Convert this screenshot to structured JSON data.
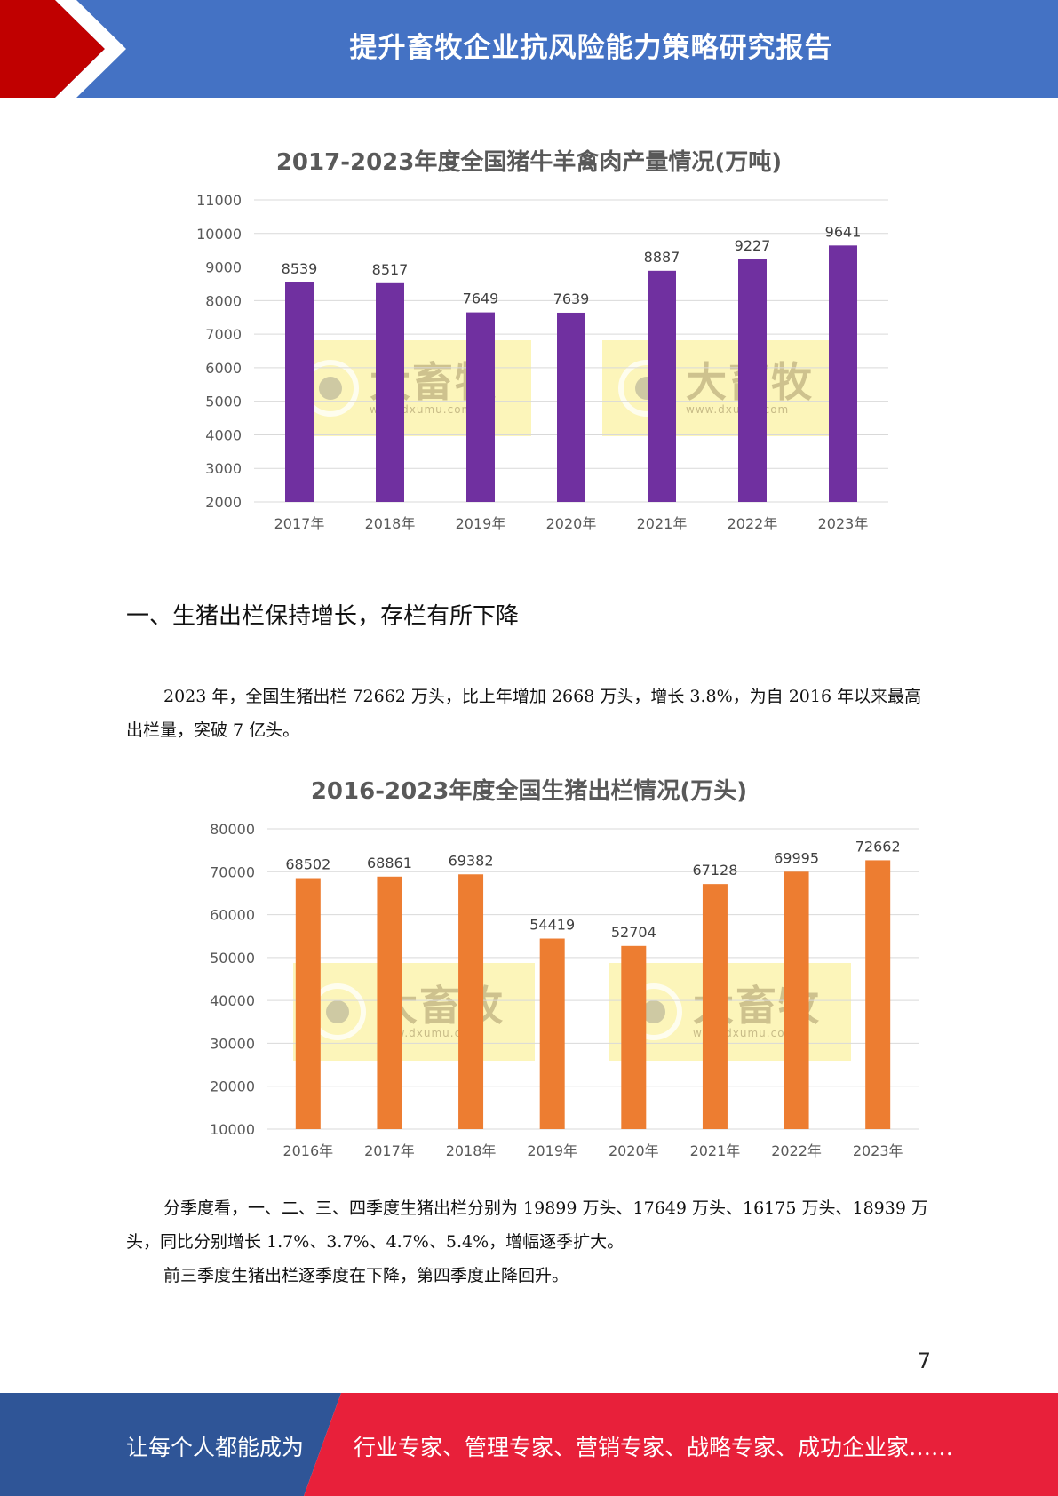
{
  "header": {
    "title": "提升畜牧企业抗风险能力策略研究报告",
    "colors": {
      "bar": "#4472c4",
      "accent": "#c00000"
    }
  },
  "watermark": {
    "brand": "大畜牧",
    "url": "www.dxumu.com"
  },
  "chart_data": [
    {
      "type": "bar",
      "title": "2017-2023年度全国猪牛羊禽肉产量情况(万吨)",
      "categories": [
        "2017年",
        "2018年",
        "2019年",
        "2020年",
        "2021年",
        "2022年",
        "2023年"
      ],
      "values": [
        8539,
        8517,
        7649,
        7639,
        8887,
        9227,
        9641
      ],
      "yticks": [
        2000,
        3000,
        4000,
        5000,
        6000,
        7000,
        8000,
        9000,
        10000,
        11000
      ],
      "ylim": [
        2000,
        11000
      ],
      "xlabel": "",
      "ylabel": "",
      "color": "#7030a0",
      "grid": true
    },
    {
      "type": "bar",
      "title": "2016-2023年度全国生猪出栏情况(万头)",
      "categories": [
        "2016年",
        "2017年",
        "2018年",
        "2019年",
        "2020年",
        "2021年",
        "2022年",
        "2023年"
      ],
      "values": [
        68502,
        68861,
        69382,
        54419,
        52704,
        67128,
        69995,
        72662
      ],
      "yticks": [
        10000,
        20000,
        30000,
        40000,
        50000,
        60000,
        70000,
        80000
      ],
      "ylim": [
        10000,
        80000
      ],
      "xlabel": "",
      "ylabel": "",
      "color": "#ed7d31",
      "grid": true
    }
  ],
  "section": {
    "heading": "一、生猪出栏保持增长，存栏有所下降",
    "paragraph1": "2023 年，全国生猪出栏 72662 万头，比上年增加 2668 万头，增长 3.8%，为自 2016 年以来最高出栏量，突破 7 亿头。",
    "paragraph2": "分季度看，一、二、三、四季度生猪出栏分别为 19899 万头、17649 万头、16175 万头、18939 万头，同比分别增长 1.7%、3.7%、4.7%、5.4%，增幅逐季扩大。",
    "paragraph3": "前三季度生猪出栏逐季度在下降，第四季度止降回升。"
  },
  "page_number": "7",
  "footer": {
    "left_text": "让每个人都能成为",
    "right_text": "行业专家、管理专家、营销专家、战略专家、成功企业家……",
    "colors": {
      "left": "#2f5597",
      "right": "#e8203a"
    }
  }
}
